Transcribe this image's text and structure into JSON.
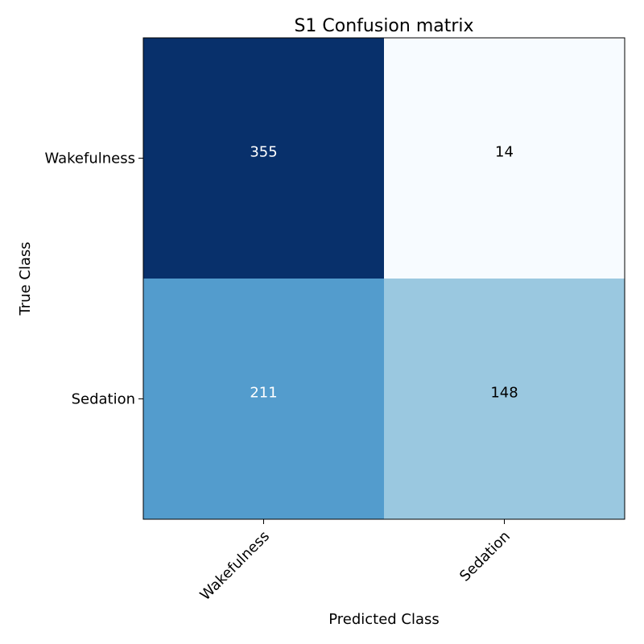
{
  "chart_data": {
    "type": "heatmap",
    "title": "S1 Confusion matrix",
    "xlabel": "Predicted Class",
    "ylabel": "True Class",
    "x_categories": [
      "Wakefulness",
      "Sedation"
    ],
    "y_categories": [
      "Wakefulness",
      "Sedation"
    ],
    "matrix": [
      [
        355,
        14
      ],
      [
        211,
        148
      ]
    ],
    "colormap": "Blues",
    "value_range": [
      14,
      355
    ],
    "grid": false,
    "legend": "none",
    "colors": {
      "cells": [
        [
          "#08306b",
          "#f7fbff"
        ],
        [
          "#539ccd",
          "#9ac8e0"
        ]
      ],
      "text_dark": "#000000",
      "text_light": "#ffffff"
    }
  }
}
